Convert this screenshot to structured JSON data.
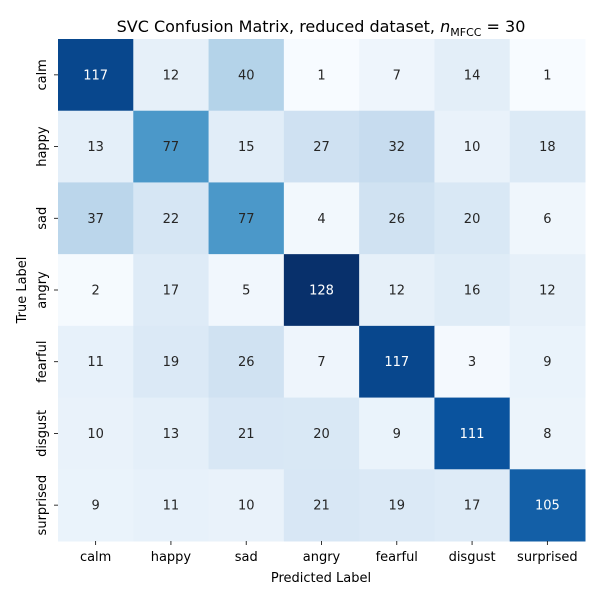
{
  "chart_data": {
    "type": "heatmap",
    "title_main": "SVC Confusion Matrix, reduced dataset, ",
    "title_math": "n",
    "title_sub": "MFCC",
    "title_tail": " = 30",
    "xlabel": "Predicted Label",
    "ylabel": "True Label",
    "x_categories": [
      "calm",
      "happy",
      "sad",
      "angry",
      "fearful",
      "disgust",
      "surprised"
    ],
    "y_categories": [
      "calm",
      "happy",
      "sad",
      "angry",
      "fearful",
      "disgust",
      "surprised"
    ],
    "values": [
      [
        117,
        12,
        40,
        1,
        7,
        14,
        1
      ],
      [
        13,
        77,
        15,
        27,
        32,
        10,
        18
      ],
      [
        37,
        22,
        77,
        4,
        26,
        20,
        6
      ],
      [
        2,
        17,
        5,
        128,
        12,
        16,
        12
      ],
      [
        11,
        19,
        26,
        7,
        117,
        3,
        9
      ],
      [
        10,
        13,
        21,
        20,
        9,
        111,
        8
      ],
      [
        9,
        11,
        10,
        21,
        19,
        17,
        105
      ]
    ],
    "colormap": "Blues",
    "color_range": [
      1,
      128
    ],
    "colorbar": false
  }
}
